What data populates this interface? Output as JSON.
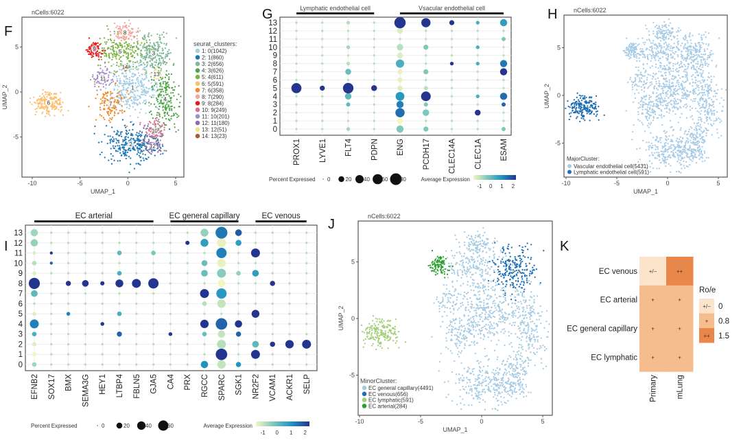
{
  "panel_labels": {
    "F": "F",
    "G": "G",
    "H": "H",
    "I": "I",
    "J": "J",
    "K": "K"
  },
  "chart_data": [
    {
      "panel": "F",
      "type": "scatter",
      "title": "nCells:6022",
      "xlabel": "UMAP_1",
      "ylabel": "UMAP_2",
      "xticks": [
        "-10",
        "-5",
        "0",
        "5"
      ],
      "yticks": [
        "-5",
        "0",
        "5"
      ],
      "xlim": [
        -10.5,
        5.8
      ],
      "ylim": [
        -9.5,
        8.3
      ],
      "legend_title": "seurat_clusters:",
      "clusters": [
        {
          "label": "1",
          "legend": "1: 0(1042)",
          "count": 1042,
          "center": [
            0.5,
            0.5
          ],
          "spread": [
            1.3,
            1.3
          ],
          "color": "#a6cee3"
        },
        {
          "label": "2",
          "legend": "2: 1(860)",
          "count": 860,
          "center": [
            0.3,
            -5.8
          ],
          "spread": [
            1.5,
            1.0
          ],
          "color": "#1f78b4"
        },
        {
          "label": "3",
          "legend": "3: 2(656)",
          "count": 656,
          "center": [
            2.7,
            4.3
          ],
          "spread": [
            0.9,
            1.1
          ],
          "color": "#7fb89a"
        },
        {
          "label": "4",
          "legend": "4: 3(626)",
          "count": 626,
          "center": [
            3.9,
            -0.8
          ],
          "spread": [
            0.7,
            1.8
          ],
          "color": "#4fa64a"
        },
        {
          "label": "5",
          "legend": "5: 4(611)",
          "count": 611,
          "center": [
            -0.8,
            4.5
          ],
          "spread": [
            1.2,
            1.0
          ],
          "color": "#7cb342"
        },
        {
          "label": "6",
          "legend": "6: 5(591)",
          "count": 591,
          "center": [
            -8.3,
            -1.2
          ],
          "spread": [
            0.7,
            0.6
          ],
          "color": "#fdbf6f"
        },
        {
          "label": "7",
          "legend": "7: 6(358)",
          "count": 358,
          "center": [
            -1.8,
            -1.3
          ],
          "spread": [
            0.8,
            0.9
          ],
          "color": "#f08a24"
        },
        {
          "label": "8",
          "legend": "8: 7(290)",
          "count": 290,
          "center": [
            -0.3,
            6.6
          ],
          "spread": [
            0.6,
            0.5
          ],
          "color": "#f4a6a0"
        },
        {
          "label": "9",
          "legend": "9: 8(284)",
          "count": 284,
          "center": [
            -3.5,
            4.8
          ],
          "spread": [
            0.4,
            0.4
          ],
          "color": "#e31a1c"
        },
        {
          "label": "10",
          "legend": "10: 9(249)",
          "count": 249,
          "center": [
            2.8,
            -4.3
          ],
          "spread": [
            0.6,
            0.6
          ],
          "color": "#d87093"
        },
        {
          "label": "11",
          "legend": "11: 10(201)",
          "count": 201,
          "center": [
            -2.6,
            1.5
          ],
          "spread": [
            0.6,
            0.6
          ],
          "color": "#a08ec8"
        },
        {
          "label": "12",
          "legend": "12: 11(180)",
          "count": 180,
          "center": [
            2.6,
            -6.0
          ],
          "spread": [
            0.5,
            0.4
          ],
          "color": "#8a6fae"
        },
        {
          "label": "13",
          "legend": "13: 12(51)",
          "count": 51,
          "center": [
            3.0,
            2.0
          ],
          "spread": [
            0.4,
            0.3
          ],
          "color": "#f5e08a"
        },
        {
          "label": "14",
          "legend": "14: 13(23)",
          "count": 23,
          "center": [
            -0.3,
            2.8
          ],
          "spread": [
            0.2,
            0.2
          ],
          "color": "#b15928"
        }
      ]
    },
    {
      "panel": "G",
      "type": "dot",
      "genes": [
        "PROX1",
        "LYVE1",
        "FLT4",
        "PDPN",
        "ENG",
        "PCDH17",
        "CLEC14A",
        "CLEC1A",
        "ESAM"
      ],
      "clusters": [
        "0",
        "1",
        "2",
        "3",
        "4",
        "5",
        "6",
        "7",
        "8",
        "9",
        "10",
        "11",
        "12",
        "13"
      ],
      "groups": [
        {
          "label": "Lymphatic endothelial cell",
          "from": "PROX1",
          "to": "PDPN"
        },
        {
          "label": "Vsacular endothelial cell",
          "from": "ENG",
          "to": "ESAM"
        }
      ],
      "default": {
        "pct": 3,
        "avg_exp": -0.5
      },
      "dots": [
        [
          "PROX1",
          5,
          60,
          2.3
        ],
        [
          "LYVE1",
          5,
          15,
          2.3
        ],
        [
          "FLT4",
          5,
          65,
          2.3
        ],
        [
          "FLT4",
          4,
          25,
          0.3
        ],
        [
          "FLT4",
          7,
          20,
          0.2
        ],
        [
          "FLT4",
          3,
          10,
          0.3
        ],
        [
          "FLT4",
          13,
          8,
          -0.5
        ],
        [
          "FLT4",
          10,
          8,
          -0.3
        ],
        [
          "FLT4",
          0,
          8,
          -0.3
        ],
        [
          "FLT4",
          8,
          8,
          -0.5
        ],
        [
          "PDPN",
          5,
          20,
          2.3
        ],
        [
          "ENG",
          13,
          75,
          2.3
        ],
        [
          "ENG",
          12,
          20,
          -0.8
        ],
        [
          "ENG",
          10,
          25,
          -0.5
        ],
        [
          "ENG",
          9,
          20,
          -0.8
        ],
        [
          "ENG",
          8,
          40,
          0.5
        ],
        [
          "ENG",
          7,
          15,
          -0.9
        ],
        [
          "ENG",
          6,
          15,
          -0.9
        ],
        [
          "ENG",
          5,
          15,
          -0.8
        ],
        [
          "ENG",
          4,
          45,
          0.9
        ],
        [
          "ENG",
          3,
          30,
          1.2
        ],
        [
          "ENG",
          2,
          50,
          1.4
        ],
        [
          "ENG",
          1,
          20,
          -1
        ],
        [
          "ENG",
          0,
          30,
          0
        ],
        [
          "PCDH17",
          13,
          50,
          2.2
        ],
        [
          "PCDH17",
          10,
          15,
          0
        ],
        [
          "PCDH17",
          7,
          15,
          0
        ],
        [
          "PCDH17",
          4,
          55,
          2.3
        ],
        [
          "PCDH17",
          2,
          25,
          0
        ],
        [
          "PCDH17",
          0,
          15,
          0
        ],
        [
          "PCDH17",
          5,
          10,
          -0.5
        ],
        [
          "PCDH17",
          3,
          10,
          0
        ],
        [
          "CLEC14A",
          13,
          15,
          2.3
        ],
        [
          "CLEC14A",
          8,
          8,
          2
        ],
        [
          "CLEC1A",
          2,
          20,
          2.3
        ],
        [
          "CLEC1A",
          13,
          8,
          0.5
        ],
        [
          "CLEC1A",
          10,
          8,
          0.5
        ],
        [
          "CLEC1A",
          8,
          8,
          0.5
        ],
        [
          "CLEC1A",
          4,
          8,
          0.5
        ],
        [
          "ESAM",
          13,
          30,
          0.8
        ],
        [
          "ESAM",
          11,
          10,
          0
        ],
        [
          "ESAM",
          8,
          30,
          1.3
        ],
        [
          "ESAM",
          7,
          30,
          2.1
        ],
        [
          "ESAM",
          4,
          30,
          1.4
        ],
        [
          "ESAM",
          3,
          10,
          1.5
        ],
        [
          "ESAM",
          0,
          10,
          0
        ]
      ],
      "size_legend_title": "Percent Expressed",
      "size_legend": [
        "0",
        "20",
        "40",
        "60",
        "80"
      ],
      "color_legend_title": "Average Expression",
      "color_legend": [
        "-1",
        "0",
        "1",
        "2"
      ],
      "color_range": [
        -1.3,
        2.5
      ],
      "colors": [
        "#f4f6c0",
        "#7cc8b9",
        "#1f93c1",
        "#243590"
      ]
    },
    {
      "panel": "H",
      "type": "scatter",
      "title": "nCells:6022",
      "xlabel": "UMAP_1",
      "ylabel": "UMAP_2",
      "xticks": [
        "-10",
        "-5",
        "0",
        "5"
      ],
      "yticks": [
        "-5",
        "0",
        "5"
      ],
      "legend_title": "MajorCluster:",
      "groups": [
        {
          "legend": "Vascular endothelial cell(5431)",
          "color": "#a9cce6",
          "clusters": [
            0,
            1,
            2,
            3,
            4,
            6,
            7,
            8,
            9,
            10,
            11,
            12,
            13
          ]
        },
        {
          "legend": "Lymphatic endothelial cell(591)",
          "color": "#1f6fb4",
          "clusters": [
            5
          ]
        }
      ]
    },
    {
      "panel": "I",
      "type": "dot",
      "genes": [
        "EFNB2",
        "SOX17",
        "BMX",
        "SEMA3G",
        "HEY1",
        "LTBP4",
        "FBLN5",
        "GJA5",
        "CA4",
        "PRX",
        "RGCC",
        "SPARC",
        "SGK1",
        "NR2F2",
        "VCAM1",
        "ACKR1",
        "SELP"
      ],
      "clusters": [
        "0",
        "1",
        "2",
        "3",
        "4",
        "5",
        "6",
        "7",
        "8",
        "9",
        "10",
        "11",
        "12",
        "13"
      ],
      "groups": [
        {
          "label": "EC arterial",
          "from": "EFNB2",
          "to": "GJA5"
        },
        {
          "label": "EC general capillary",
          "from": "CA4",
          "to": "SGK1"
        },
        {
          "label": "EC venous",
          "from": "NR2F2",
          "to": "SELP"
        }
      ],
      "default": {
        "pct": 3,
        "avg_exp": -0.5
      },
      "dots": [
        [
          "EFNB2",
          13,
          30,
          -0.3
        ],
        [
          "EFNB2",
          12,
          30,
          -0.2
        ],
        [
          "EFNB2",
          8,
          70,
          2.4
        ],
        [
          "EFNB2",
          7,
          25,
          0.3
        ],
        [
          "EFNB2",
          4,
          45,
          1.2
        ],
        [
          "EFNB2",
          3,
          12,
          0.5
        ],
        [
          "EFNB2",
          10,
          12,
          -0.5
        ],
        [
          "EFNB2",
          0,
          12,
          -0.3
        ],
        [
          "EFNB2",
          2,
          10,
          -0.8
        ],
        [
          "EFNB2",
          1,
          10,
          -1
        ],
        [
          "EFNB2",
          9,
          8,
          -0.8
        ],
        [
          "EFNB2",
          5,
          8,
          -0.8
        ],
        [
          "EFNB2",
          11,
          8,
          -0.8
        ],
        [
          "SOX17",
          11,
          5,
          2
        ],
        [
          "SOX17",
          10,
          5,
          1.5
        ],
        [
          "BMX",
          8,
          15,
          2.3
        ],
        [
          "BMX",
          5,
          8,
          1.2
        ],
        [
          "SEMA3G",
          8,
          25,
          2.4
        ],
        [
          "HEY1",
          8,
          10,
          2.3
        ],
        [
          "HEY1",
          4,
          8,
          2
        ],
        [
          "LTBP4",
          8,
          35,
          2.3
        ],
        [
          "LTBP4",
          3,
          15,
          1.5
        ],
        [
          "LTBP4",
          5,
          12,
          0.5
        ],
        [
          "LTBP4",
          9,
          12,
          0.5
        ],
        [
          "LTBP4",
          11,
          12,
          0.3
        ],
        [
          "FBLN5",
          8,
          45,
          2.3
        ],
        [
          "GJA5",
          8,
          60,
          2.4
        ],
        [
          "GJA5",
          11,
          12,
          0
        ],
        [
          "CA4",
          3,
          8,
          2
        ],
        [
          "PRX",
          12,
          10,
          2.3
        ],
        [
          "RGCC",
          13,
          35,
          -0.2
        ],
        [
          "RGCC",
          12,
          35,
          0.8
        ],
        [
          "RGCC",
          10,
          20,
          0.2
        ],
        [
          "RGCC",
          9,
          25,
          0.2
        ],
        [
          "RGCC",
          7,
          45,
          2.2
        ],
        [
          "RGCC",
          6,
          12,
          -0.5
        ],
        [
          "RGCC",
          4,
          40,
          2.1
        ],
        [
          "RGCC",
          0,
          30,
          1
        ],
        [
          "RGCC",
          3,
          12,
          0.2
        ],
        [
          "SPARC",
          13,
          80,
          1.3
        ],
        [
          "SPARC",
          12,
          45,
          -0.9
        ],
        [
          "SPARC",
          11,
          60,
          1.2
        ],
        [
          "SPARC",
          10,
          40,
          -0.9
        ],
        [
          "SPARC",
          9,
          45,
          -0.1
        ],
        [
          "SPARC",
          8,
          30,
          -1
        ],
        [
          "SPARC",
          7,
          60,
          0.9
        ],
        [
          "SPARC",
          6,
          40,
          -0.6
        ],
        [
          "SPARC",
          4,
          75,
          1.5
        ],
        [
          "SPARC",
          3,
          30,
          -0.6
        ],
        [
          "SPARC",
          2,
          45,
          -0.5
        ],
        [
          "SPARC",
          1,
          75,
          2.1
        ],
        [
          "SPARC",
          0,
          40,
          -0.6
        ],
        [
          "SGK1",
          13,
          25,
          1.6
        ],
        [
          "SGK1",
          12,
          20,
          0.8
        ],
        [
          "SGK1",
          4,
          30,
          2.3
        ],
        [
          "SGK1",
          3,
          15,
          1.5
        ],
        [
          "SGK1",
          9,
          12,
          -0.2
        ],
        [
          "SGK1",
          0,
          15,
          1
        ],
        [
          "NR2F2",
          11,
          45,
          2.2
        ],
        [
          "NR2F2",
          9,
          25,
          0.8
        ],
        [
          "NR2F2",
          5,
          35,
          2.1
        ],
        [
          "NR2F2",
          2,
          25,
          0.3
        ],
        [
          "NR2F2",
          1,
          45,
          2.2
        ],
        [
          "VCAM1",
          8,
          15,
          2.3
        ],
        [
          "VCAM1",
          2,
          15,
          2.3
        ],
        [
          "ACKR1",
          2,
          40,
          2.4
        ],
        [
          "SELP",
          2,
          45,
          2.4
        ]
      ],
      "size_legend_title": "Percent Expressed",
      "size_legend": [
        "0",
        "20",
        "40",
        "60"
      ],
      "color_legend_title": "Average Expression",
      "color_legend": [
        "-1",
        "0",
        "1",
        "2"
      ],
      "color_range": [
        -1.3,
        2.5
      ],
      "colors": [
        "#f4f6c0",
        "#7cc8b9",
        "#1f93c1",
        "#243590"
      ]
    },
    {
      "panel": "J",
      "type": "scatter",
      "title": "nCells:6022",
      "xlabel": "UMAP_1",
      "ylabel": "UMAP_2",
      "xticks": [
        "-10",
        "-5",
        "0",
        "5"
      ],
      "yticks": [
        "-5",
        "0",
        "5"
      ],
      "legend_title": "MinorCluster:",
      "groups": [
        {
          "legend": "EC general capillary(4491)",
          "color": "#a6cbe3",
          "clusters": [
            0,
            1,
            3,
            4,
            6,
            7,
            9,
            10,
            11,
            12,
            13
          ]
        },
        {
          "legend": "EC venous(656)",
          "color": "#1f6fb4",
          "clusters": [
            2
          ]
        },
        {
          "legend": "EC lymphatic(591)",
          "color": "#a6cf7a",
          "clusters": [
            5
          ]
        },
        {
          "legend": "EC arterial(284)",
          "color": "#2ca02c",
          "clusters": [
            8
          ]
        }
      ]
    },
    {
      "panel": "K",
      "type": "heatmap",
      "rows": [
        "EC venous",
        "EC arterial",
        "EC general capillary",
        "EC lymphatic"
      ],
      "columns": [
        "Primary",
        "mLung"
      ],
      "values": [
        [
          "+/−",
          "++"
        ],
        [
          "+",
          "+"
        ],
        [
          "+",
          "+"
        ],
        [
          "+",
          "+"
        ]
      ],
      "legend_title": "Ro/e",
      "legend": [
        {
          "symbol": "+/−",
          "value": "0",
          "color": "#fbe3cc"
        },
        {
          "symbol": "+",
          "value": "0.8",
          "color": "#f5bd8e"
        },
        {
          "symbol": "++",
          "value": "1.5",
          "color": "#e9864a"
        }
      ]
    }
  ]
}
